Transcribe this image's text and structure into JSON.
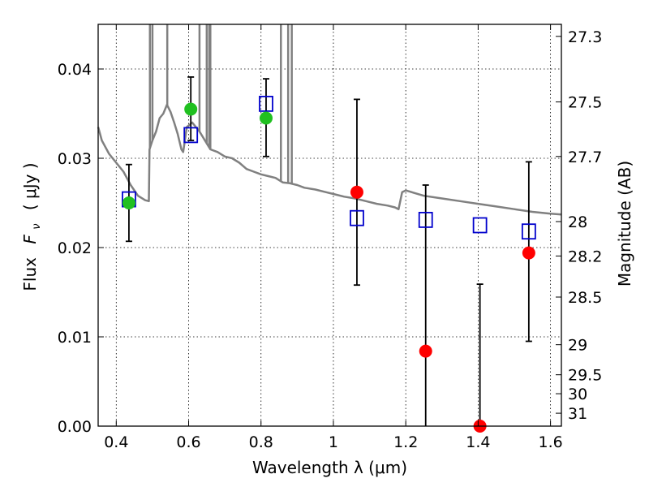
{
  "chart_data": {
    "type": "scatter",
    "xlabel": "Wavelength  λ (μm)",
    "ylabel_text": "Flux",
    "ylabel_symbol": "F",
    "ylabel_symbol_sub": "ν",
    "ylabel_unit": "( μJy )",
    "y2label": "Magnitude (AB)",
    "xlim": [
      0.35,
      1.63
    ],
    "ylim": [
      0.0,
      0.045
    ],
    "grid": true,
    "x_ticks": [
      {
        "value": 0.4,
        "label": "0.4"
      },
      {
        "value": 0.6,
        "label": "0.6"
      },
      {
        "value": 0.8,
        "label": "0.8"
      },
      {
        "value": 1.0,
        "label": "1"
      },
      {
        "value": 1.2,
        "label": "1.2"
      },
      {
        "value": 1.4,
        "label": "1.4"
      },
      {
        "value": 1.6,
        "label": "1.6"
      }
    ],
    "y_ticks": [
      {
        "value": 0.0,
        "label": "0.00"
      },
      {
        "value": 0.01,
        "label": "0.01"
      },
      {
        "value": 0.02,
        "label": "0.02"
      },
      {
        "value": 0.03,
        "label": "0.03"
      },
      {
        "value": 0.04,
        "label": "0.04"
      }
    ],
    "y2_ticks": [
      {
        "value": 27.3,
        "label": "27.3"
      },
      {
        "value": 27.5,
        "label": "27.5"
      },
      {
        "value": 27.7,
        "label": "27.7"
      },
      {
        "value": 28,
        "label": "28"
      },
      {
        "value": 28.2,
        "label": "28.2"
      },
      {
        "value": 28.5,
        "label": "28.5"
      },
      {
        "value": 29,
        "label": "29"
      },
      {
        "value": 29.5,
        "label": "29.5"
      },
      {
        "value": 30,
        "label": "30"
      },
      {
        "value": 31,
        "label": "31"
      }
    ],
    "series": [
      {
        "marker": "line",
        "color": "#808080",
        "points": [
          [
            0.35,
            0.0335
          ],
          [
            0.36,
            0.032
          ],
          [
            0.38,
            0.0305
          ],
          [
            0.4,
            0.0295
          ],
          [
            0.42,
            0.0285
          ],
          [
            0.44,
            0.027
          ],
          [
            0.46,
            0.0258
          ],
          [
            0.48,
            0.0253
          ],
          [
            0.49,
            0.0252
          ],
          [
            0.492,
            0.031
          ],
          [
            0.5,
            0.032
          ],
          [
            0.51,
            0.033
          ],
          [
            0.52,
            0.0345
          ],
          [
            0.53,
            0.035
          ],
          [
            0.54,
            0.036
          ],
          [
            0.55,
            0.0352
          ],
          [
            0.56,
            0.034
          ],
          [
            0.57,
            0.0327
          ],
          [
            0.58,
            0.031
          ],
          [
            0.585,
            0.0307
          ],
          [
            0.595,
            0.0335
          ],
          [
            0.61,
            0.034
          ],
          [
            0.63,
            0.033
          ],
          [
            0.66,
            0.031
          ],
          [
            0.68,
            0.0307
          ],
          [
            0.7,
            0.0302
          ],
          [
            0.72,
            0.03
          ],
          [
            0.74,
            0.0295
          ],
          [
            0.76,
            0.0288
          ],
          [
            0.78,
            0.0285
          ],
          [
            0.8,
            0.0282
          ],
          [
            0.82,
            0.028
          ],
          [
            0.84,
            0.0278
          ],
          [
            0.86,
            0.0273
          ],
          [
            0.88,
            0.0272
          ],
          [
            0.9,
            0.027
          ],
          [
            0.92,
            0.0267
          ],
          [
            0.95,
            0.0265
          ],
          [
            0.98,
            0.0262
          ],
          [
            1.0,
            0.026
          ],
          [
            1.03,
            0.0257
          ],
          [
            1.06,
            0.0255
          ],
          [
            1.09,
            0.0252
          ],
          [
            1.12,
            0.0249
          ],
          [
            1.15,
            0.0247
          ],
          [
            1.17,
            0.0245
          ],
          [
            1.18,
            0.0243
          ],
          [
            1.19,
            0.0262
          ],
          [
            1.2,
            0.0264
          ],
          [
            1.25,
            0.0258
          ],
          [
            1.3,
            0.0255
          ],
          [
            1.35,
            0.0252
          ],
          [
            1.4,
            0.0249
          ],
          [
            1.45,
            0.0246
          ],
          [
            1.5,
            0.0243
          ],
          [
            1.55,
            0.024
          ],
          [
            1.6,
            0.0238
          ],
          [
            1.63,
            0.0237
          ]
        ],
        "spikes": [
          {
            "x": 0.493,
            "top": 0.045
          },
          {
            "x": 0.5,
            "top": 0.045
          },
          {
            "x": 0.541,
            "top": 0.045
          },
          {
            "x": 0.63,
            "top": 0.045
          },
          {
            "x": 0.65,
            "top": 0.045
          },
          {
            "x": 0.657,
            "top": 0.045
          },
          {
            "x": 0.66,
            "top": 0.045
          },
          {
            "x": 0.855,
            "top": 0.045
          },
          {
            "x": 0.875,
            "top": 0.045
          },
          {
            "x": 0.885,
            "top": 0.045
          }
        ]
      },
      {
        "marker": "open-square",
        "color": "#0000cc",
        "points": [
          [
            0.435,
            0.0254
          ],
          [
            0.606,
            0.0326
          ],
          [
            0.814,
            0.0361
          ],
          [
            1.065,
            0.0233
          ],
          [
            1.255,
            0.0231
          ],
          [
            1.405,
            0.0225
          ],
          [
            1.54,
            0.0218
          ]
        ]
      },
      {
        "marker": "circle",
        "color": "#20c020",
        "points": [
          [
            0.435,
            0.025
          ],
          [
            0.606,
            0.0355
          ],
          [
            0.814,
            0.0345
          ]
        ]
      },
      {
        "marker": "circle",
        "color": "#ff0000",
        "points": [
          [
            1.065,
            0.0262
          ],
          [
            1.255,
            0.0084
          ],
          [
            1.405,
            0.0
          ],
          [
            1.54,
            0.0194
          ]
        ]
      },
      {
        "marker": "errorbar",
        "color": "#000000",
        "bars": [
          {
            "x": 0.435,
            "low": 0.0207,
            "high": 0.0293
          },
          {
            "x": 0.606,
            "low": 0.032,
            "high": 0.0391
          },
          {
            "x": 0.814,
            "low": 0.0302,
            "high": 0.0389
          },
          {
            "x": 1.065,
            "low": 0.0158,
            "high": 0.0366
          },
          {
            "x": 1.255,
            "low": 0.0,
            "high": 0.027
          },
          {
            "x": 1.405,
            "low": 0.0,
            "high": 0.0159
          },
          {
            "x": 1.54,
            "low": 0.0095,
            "high": 0.0296
          }
        ]
      }
    ]
  }
}
